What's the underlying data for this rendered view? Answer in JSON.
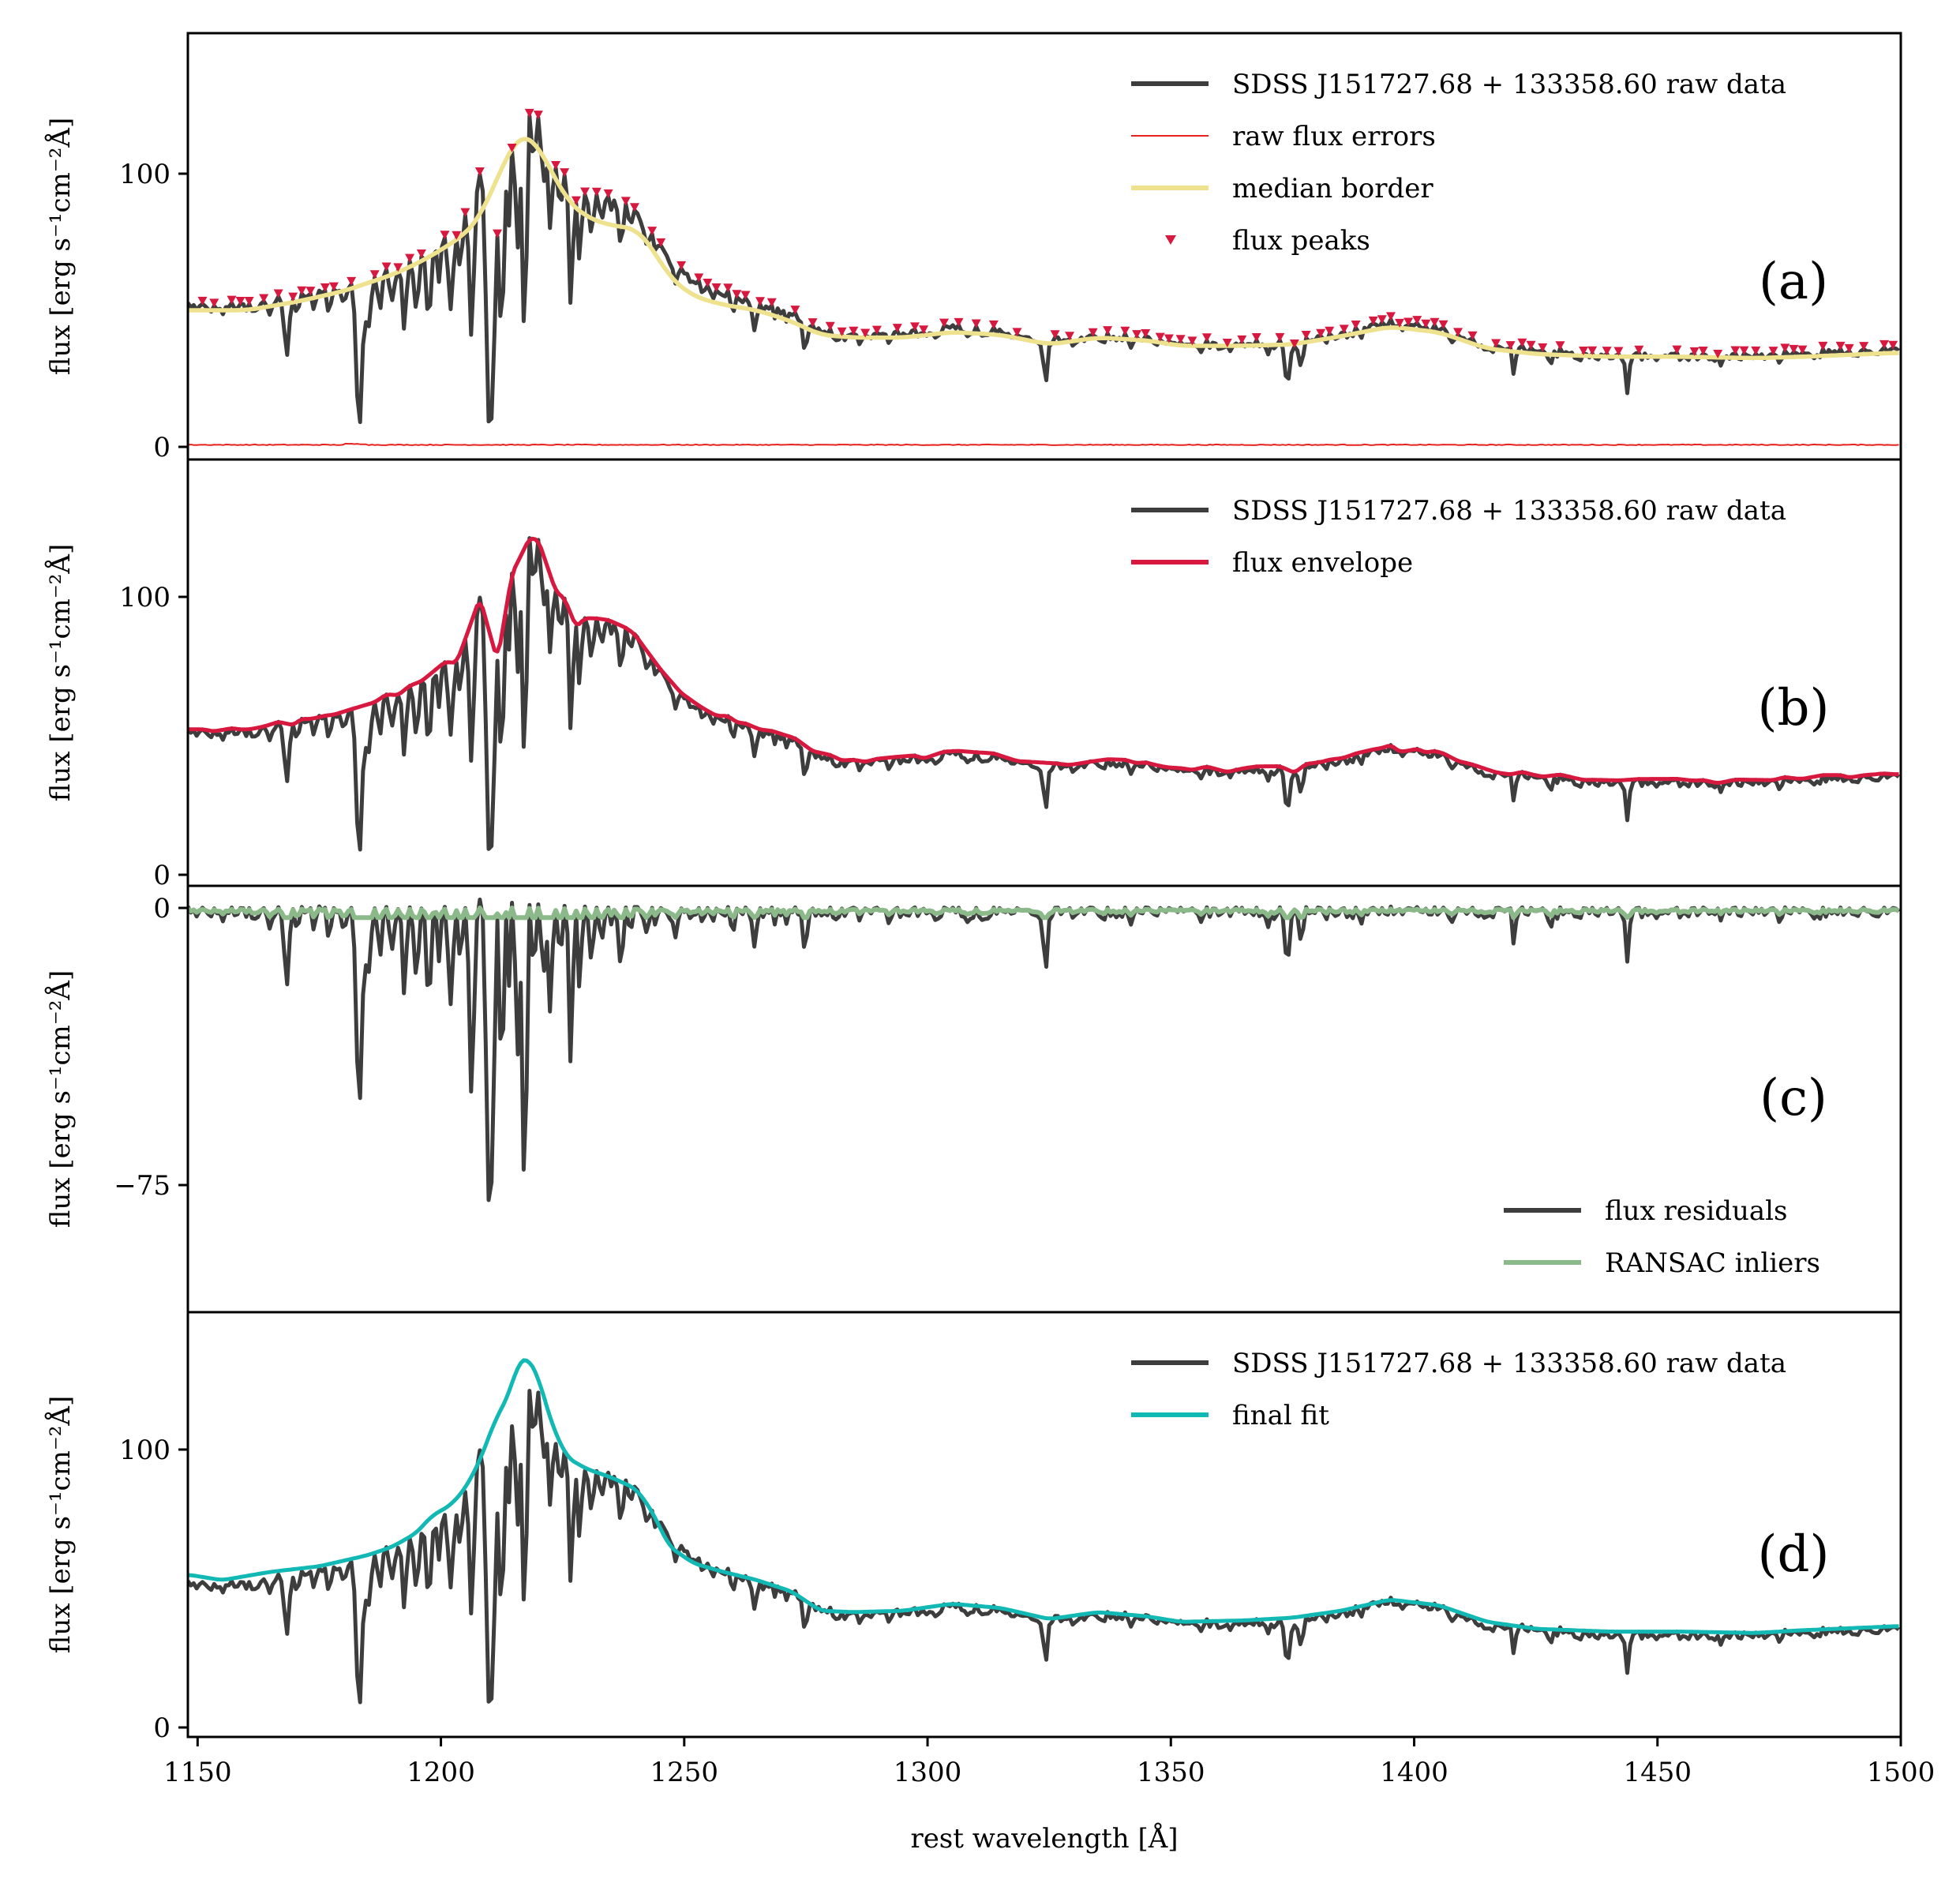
{
  "figure": {
    "xlabel": "rest wavelength [Å]",
    "x_ticks": [
      1150,
      1200,
      1250,
      1300,
      1350,
      1400,
      1450,
      1500
    ],
    "xlim": [
      1148,
      1500
    ]
  },
  "chart_data": [
    {
      "type": "line",
      "panel": "(a)",
      "ylabel": "flux [erg s⁻¹cm⁻²Å]",
      "ylim": [
        -5,
        152
      ],
      "y_ticks": [
        0,
        100
      ],
      "legend_position": "top-right",
      "legend": [
        "SDSS J151727.68 + 133358.60 raw data",
        "raw flux errors",
        "median border",
        "flux peaks"
      ],
      "series": [
        {
          "name": "SDSS J151727.68 + 133358.60 raw data",
          "color": "#3d3d3d",
          "source": "raw_flux"
        },
        {
          "name": "raw flux errors",
          "color": "#e8231f",
          "source": "errors"
        },
        {
          "name": "median border",
          "color": "#efe28e",
          "source": "median"
        },
        {
          "name": "flux peaks",
          "color": "#d7193f",
          "source": "peaks"
        }
      ]
    },
    {
      "type": "line",
      "panel": "(b)",
      "ylabel": "flux [erg s⁻¹cm⁻²Å]",
      "ylim": [
        -4,
        145
      ],
      "y_ticks": [
        0,
        100
      ],
      "legend_position": "top-right",
      "legend": [
        "SDSS J151727.68 + 133358.60 raw data",
        "flux envelope"
      ],
      "series": [
        {
          "name": "SDSS J151727.68 + 133358.60 raw data",
          "color": "#3d3d3d",
          "source": "raw_flux"
        },
        {
          "name": "flux envelope",
          "color": "#d7193f",
          "source": "envelope"
        }
      ]
    },
    {
      "type": "line",
      "panel": "(c)",
      "ylabel": "flux [erg s⁻¹cm⁻²Å]",
      "ylim": [
        -109,
        6
      ],
      "y_ticks": [
        0,
        -75
      ],
      "y_tick_labels": [
        "0",
        "−75"
      ],
      "legend_position": "lower-right",
      "legend": [
        "flux residuals",
        "RANSAC inliers"
      ],
      "series": [
        {
          "name": "flux residuals",
          "color": "#3d3d3d",
          "source": "residuals"
        },
        {
          "name": "RANSAC inliers",
          "color": "#8cb98a",
          "source": "inliers"
        }
      ]
    },
    {
      "type": "line",
      "panel": "(d)",
      "ylabel": "flux [erg s⁻¹cm⁻²Å]",
      "ylim": [
        -3,
        147
      ],
      "y_ticks": [
        0,
        100
      ],
      "legend_position": "top-right",
      "legend": [
        "SDSS J151727.68 + 133358.60 raw data",
        "final fit"
      ],
      "series": [
        {
          "name": "SDSS J151727.68 + 133358.60 raw data",
          "color": "#3d3d3d",
          "source": "raw_flux"
        },
        {
          "name": "final fit",
          "color": "#12b8b3",
          "source": "fit"
        }
      ]
    }
  ],
  "spectrum": {
    "wavelength_range": [
      1148,
      1500
    ],
    "step": 0.6,
    "continuum_knots": [
      [
        1148,
        53
      ],
      [
        1160,
        52
      ],
      [
        1170,
        56
      ],
      [
        1180,
        61
      ],
      [
        1185,
        63
      ],
      [
        1190,
        67
      ],
      [
        1195,
        72
      ],
      [
        1200,
        79
      ],
      [
        1203,
        82
      ],
      [
        1206,
        92
      ],
      [
        1209,
        105
      ],
      [
        1212,
        118
      ],
      [
        1214,
        126
      ],
      [
        1216,
        132
      ],
      [
        1218,
        131
      ],
      [
        1220,
        125
      ],
      [
        1223,
        110
      ],
      [
        1226,
        99
      ],
      [
        1230,
        94
      ],
      [
        1235,
        91
      ],
      [
        1240,
        88
      ],
      [
        1243,
        80
      ],
      [
        1247,
        68
      ],
      [
        1252,
        61
      ],
      [
        1258,
        57
      ],
      [
        1265,
        54
      ],
      [
        1272,
        50
      ],
      [
        1278,
        43
      ],
      [
        1285,
        41
      ],
      [
        1295,
        42
      ],
      [
        1305,
        44.5
      ],
      [
        1315,
        43
      ],
      [
        1325,
        39
      ],
      [
        1335,
        41.5
      ],
      [
        1345,
        40
      ],
      [
        1352,
        38
      ],
      [
        1365,
        38.5
      ],
      [
        1375,
        39
      ],
      [
        1385,
        42
      ],
      [
        1395,
        46.5
      ],
      [
        1405,
        44
      ],
      [
        1415,
        38
      ],
      [
        1425,
        36
      ],
      [
        1440,
        34.5
      ],
      [
        1455,
        34.5
      ],
      [
        1470,
        34
      ],
      [
        1480,
        35
      ],
      [
        1500,
        36.5
      ]
    ],
    "median_knots": [
      [
        1148,
        50
      ],
      [
        1160,
        50
      ],
      [
        1170,
        53
      ],
      [
        1180,
        57
      ],
      [
        1185,
        60
      ],
      [
        1190,
        63
      ],
      [
        1195,
        67
      ],
      [
        1200,
        72
      ],
      [
        1205,
        78
      ],
      [
        1208,
        84
      ],
      [
        1211,
        96
      ],
      [
        1214,
        108
      ],
      [
        1216,
        114
      ],
      [
        1218,
        114
      ],
      [
        1220,
        110
      ],
      [
        1223,
        100
      ],
      [
        1226,
        90
      ],
      [
        1230,
        84
      ],
      [
        1235,
        81
      ],
      [
        1240,
        80
      ],
      [
        1243,
        74
      ],
      [
        1247,
        62
      ],
      [
        1252,
        55
      ],
      [
        1258,
        52
      ],
      [
        1265,
        50
      ],
      [
        1272,
        46
      ],
      [
        1278,
        41
      ],
      [
        1285,
        40
      ],
      [
        1295,
        40
      ],
      [
        1305,
        42
      ],
      [
        1315,
        41
      ],
      [
        1325,
        37.5
      ],
      [
        1335,
        40
      ],
      [
        1345,
        39
      ],
      [
        1352,
        37
      ],
      [
        1365,
        37
      ],
      [
        1375,
        37.5
      ],
      [
        1385,
        40.5
      ],
      [
        1395,
        44
      ],
      [
        1405,
        42
      ],
      [
        1415,
        36
      ],
      [
        1425,
        34
      ],
      [
        1440,
        33
      ],
      [
        1455,
        33
      ],
      [
        1470,
        32.5
      ],
      [
        1480,
        33
      ],
      [
        1500,
        34.5
      ]
    ],
    "fit_knots": [
      [
        1148,
        55
      ],
      [
        1155,
        53
      ],
      [
        1165,
        56
      ],
      [
        1175,
        58
      ],
      [
        1185,
        62
      ],
      [
        1190,
        65
      ],
      [
        1195,
        70
      ],
      [
        1198,
        76
      ],
      [
        1202,
        80
      ],
      [
        1205,
        86
      ],
      [
        1208,
        96
      ],
      [
        1211,
        110
      ],
      [
        1214,
        120
      ],
      [
        1216,
        132
      ],
      [
        1218,
        133
      ],
      [
        1220,
        126
      ],
      [
        1223,
        108
      ],
      [
        1226,
        97
      ],
      [
        1230,
        93
      ],
      [
        1235,
        90
      ],
      [
        1240,
        86
      ],
      [
        1243,
        79
      ],
      [
        1247,
        65
      ],
      [
        1252,
        59
      ],
      [
        1258,
        56
      ],
      [
        1265,
        53
      ],
      [
        1272,
        49
      ],
      [
        1278,
        42
      ],
      [
        1285,
        41.5
      ],
      [
        1295,
        42
      ],
      [
        1305,
        44.5
      ],
      [
        1315,
        43
      ],
      [
        1325,
        39
      ],
      [
        1335,
        41.5
      ],
      [
        1345,
        40
      ],
      [
        1352,
        38
      ],
      [
        1365,
        38.5
      ],
      [
        1375,
        39.5
      ],
      [
        1385,
        42
      ],
      [
        1395,
        46
      ],
      [
        1405,
        44
      ],
      [
        1415,
        38
      ],
      [
        1425,
        35.5
      ],
      [
        1440,
        34.5
      ],
      [
        1455,
        34.5
      ],
      [
        1470,
        34
      ],
      [
        1480,
        35
      ],
      [
        1500,
        36.5
      ]
    ],
    "absorption_lines": [
      [
        1152,
        2.2,
        0.5
      ],
      [
        1155,
        2.8,
        0.4
      ],
      [
        1162,
        3.5,
        0.5
      ],
      [
        1165,
        3.5,
        0.5
      ],
      [
        1168.3,
        22,
        0.45
      ],
      [
        1170.5,
        5,
        0.4
      ],
      [
        1174,
        5,
        0.5
      ],
      [
        1177,
        8,
        0.5
      ],
      [
        1180,
        6,
        0.5
      ],
      [
        1183.2,
        55,
        0.55
      ],
      [
        1185,
        18,
        0.6
      ],
      [
        1187.5,
        15,
        0.4
      ],
      [
        1190,
        12,
        0.5
      ],
      [
        1192.5,
        25,
        0.45
      ],
      [
        1195,
        22,
        0.45
      ],
      [
        1197.5,
        30,
        0.45
      ],
      [
        1199.5,
        15,
        0.4
      ],
      [
        1202,
        28,
        0.5
      ],
      [
        1204,
        20,
        0.4
      ],
      [
        1206.3,
        50,
        0.5
      ],
      [
        1209.8,
        90,
        0.55
      ],
      [
        1210.8,
        70,
        0.5
      ],
      [
        1212.5,
        80,
        0.5
      ],
      [
        1214,
        40,
        0.4
      ],
      [
        1215.7,
        60,
        0.45
      ],
      [
        1217.2,
        90,
        0.45
      ],
      [
        1219,
        25,
        0.35
      ],
      [
        1221,
        22,
        0.4
      ],
      [
        1222.5,
        30,
        0.45
      ],
      [
        1224.5,
        18,
        0.4
      ],
      [
        1226.7,
        45,
        0.4
      ],
      [
        1228.5,
        25,
        0.4
      ],
      [
        1231,
        15,
        0.4
      ],
      [
        1233,
        8,
        0.4
      ],
      [
        1237,
        15,
        0.4
      ],
      [
        1239,
        6,
        0.4
      ],
      [
        1242,
        8,
        0.4
      ],
      [
        1244,
        5,
        0.3
      ],
      [
        1248,
        4,
        0.4
      ],
      [
        1256,
        3,
        0.4
      ],
      [
        1260,
        4,
        0.4
      ],
      [
        1264.5,
        10,
        0.4
      ],
      [
        1266.5,
        4,
        0.3
      ],
      [
        1268.5,
        3.5,
        0.3
      ],
      [
        1271,
        3,
        0.3
      ],
      [
        1274.8,
        11,
        0.35
      ],
      [
        1281,
        2,
        0.3
      ],
      [
        1286,
        2,
        0.3
      ],
      [
        1292,
        2.5,
        0.3
      ],
      [
        1298,
        2.5,
        0.3
      ],
      [
        1302,
        2.5,
        0.3
      ],
      [
        1308,
        2.5,
        0.3
      ],
      [
        1311,
        3,
        0.3
      ],
      [
        1317,
        2.5,
        0.3
      ],
      [
        1324.2,
        15,
        0.35
      ],
      [
        1330,
        2.5,
        0.3
      ],
      [
        1336,
        2,
        0.3
      ],
      [
        1342,
        2.5,
        0.3
      ],
      [
        1356,
        2,
        0.3
      ],
      [
        1362,
        2,
        0.3
      ],
      [
        1370,
        2,
        0.3
      ],
      [
        1374,
        16,
        0.45
      ],
      [
        1376.7,
        10,
        0.4
      ],
      [
        1382,
        2.5,
        0.3
      ],
      [
        1389,
        2,
        0.3
      ],
      [
        1398,
        2.5,
        0.3
      ],
      [
        1408,
        2,
        0.3
      ],
      [
        1413,
        2,
        0.3
      ],
      [
        1416,
        3,
        0.3
      ],
      [
        1420.5,
        10,
        0.35
      ],
      [
        1428,
        3,
        0.3
      ],
      [
        1434,
        2.5,
        0.3
      ],
      [
        1438,
        2.5,
        0.3
      ],
      [
        1443.8,
        14,
        0.35
      ],
      [
        1450,
        2.5,
        0.3
      ],
      [
        1456,
        2,
        0.3
      ],
      [
        1463,
        2.5,
        0.3
      ],
      [
        1475,
        2,
        0.3
      ],
      [
        1482,
        2,
        0.3
      ],
      [
        1490,
        2,
        0.3
      ]
    ]
  }
}
